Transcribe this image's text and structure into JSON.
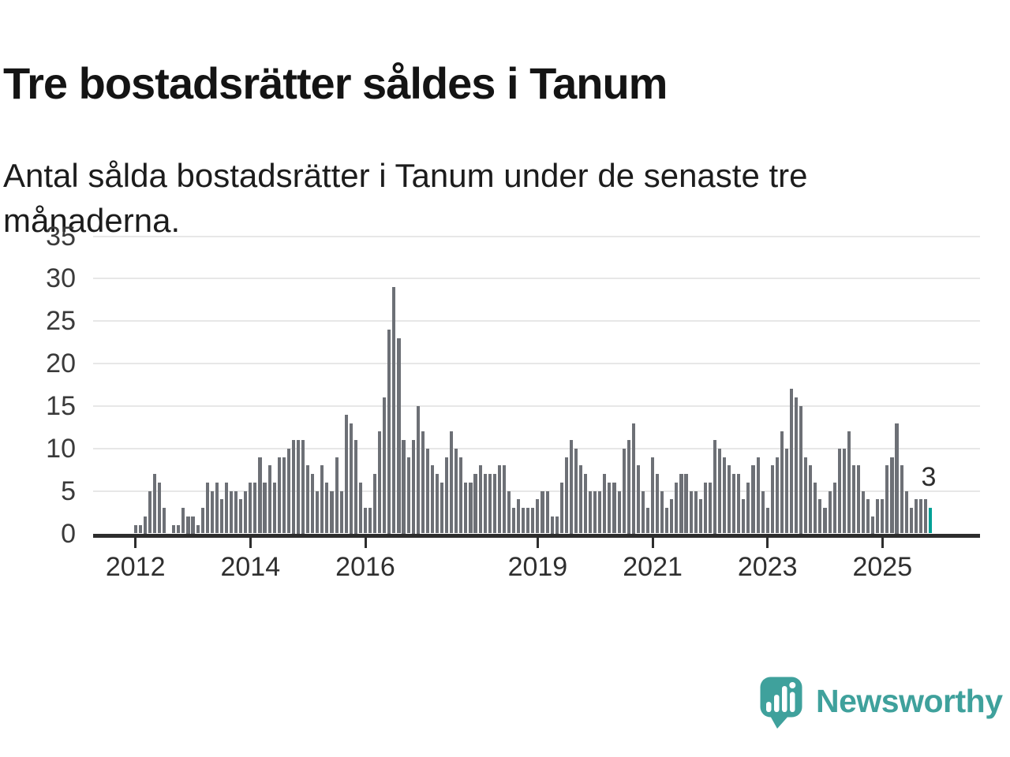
{
  "header": {
    "title": "Tre bostadsrätter såldes i Tanum",
    "subtitle": "Antal sålda bostadsrätter i Tanum under de senaste tre månaderna."
  },
  "chart_data": {
    "type": "bar",
    "title": "Tre bostadsrätter såldes i Tanum",
    "subtitle": "Antal sålda bostadsrätter i Tanum under de senaste tre månaderna.",
    "xlabel": "",
    "ylabel": "",
    "ylim": [
      0,
      35
    ],
    "y_ticks": [
      0,
      5,
      10,
      15,
      20,
      25,
      30,
      35
    ],
    "x_tick_years": [
      2012,
      2014,
      2016,
      2019,
      2021,
      2023,
      2025
    ],
    "grid": "horizontal",
    "legend": "none",
    "start_month": "2011-04",
    "end_month": "2025-11",
    "values": [
      0,
      0,
      0,
      0,
      0,
      0,
      0,
      0,
      0,
      1,
      1,
      2,
      5,
      7,
      6,
      3,
      0,
      1,
      1,
      3,
      2,
      2,
      1,
      3,
      6,
      5,
      6,
      4,
      6,
      5,
      5,
      4,
      5,
      6,
      6,
      9,
      6,
      8,
      6,
      9,
      9,
      10,
      11,
      11,
      11,
      8,
      7,
      5,
      8,
      6,
      5,
      9,
      5,
      14,
      13,
      11,
      6,
      3,
      3,
      7,
      12,
      16,
      24,
      29,
      23,
      11,
      9,
      11,
      15,
      12,
      10,
      8,
      7,
      6,
      9,
      12,
      10,
      9,
      6,
      6,
      7,
      8,
      7,
      7,
      7,
      8,
      8,
      5,
      3,
      4,
      3,
      3,
      3,
      4,
      5,
      5,
      2,
      2,
      6,
      9,
      11,
      10,
      8,
      7,
      5,
      5,
      5,
      7,
      6,
      6,
      5,
      10,
      11,
      13,
      8,
      5,
      3,
      9,
      7,
      5,
      3,
      4,
      6,
      7,
      7,
      5,
      5,
      4,
      6,
      6,
      11,
      10,
      9,
      8,
      7,
      7,
      4,
      6,
      8,
      9,
      5,
      3,
      8,
      9,
      12,
      10,
      17,
      16,
      15,
      9,
      8,
      6,
      4,
      3,
      5,
      6,
      10,
      10,
      12,
      8,
      8,
      5,
      4,
      2,
      4,
      4,
      8,
      9,
      13,
      8,
      5,
      3,
      4,
      4,
      4,
      3
    ],
    "highlight": {
      "month": "2025-11",
      "value": 3,
      "label": "3",
      "color": "#00a096"
    },
    "bar_color": "#6d7076"
  },
  "footer": {
    "brand": "Newsworthy"
  },
  "colors": {
    "accent_teal": "#00a096",
    "bar_gray": "#6d7076",
    "axis": "#2d2d2d",
    "gridline": "#e7e7e7",
    "brand_teal": "#3fa19c",
    "background": "#ffffff"
  }
}
